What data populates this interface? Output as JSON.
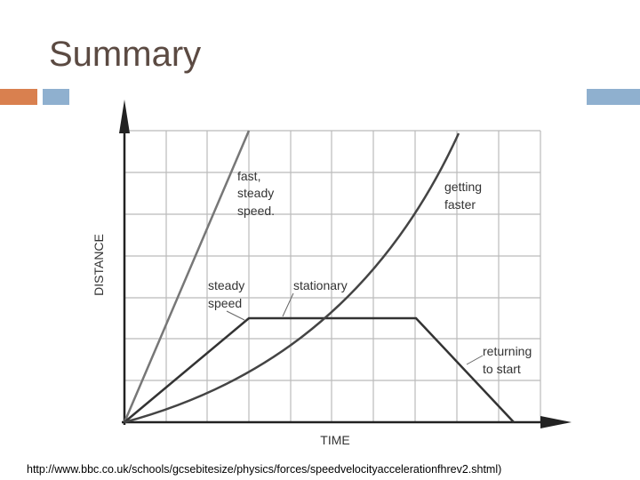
{
  "title": "Summary",
  "diagram": {
    "y_axis_label": "DISTANCE",
    "x_axis_label": "TIME",
    "annotations": [
      {
        "lines": [
          "fast,",
          "steady",
          "speed."
        ]
      },
      {
        "lines": [
          "getting",
          "faster"
        ]
      },
      {
        "lines": [
          "steady",
          "speed"
        ]
      },
      {
        "lines": [
          "stationary"
        ]
      },
      {
        "lines": [
          "returning",
          "to start"
        ]
      }
    ]
  },
  "source": "http://www.bbc.co.uk/schools/gcsebitesize/physics/forces/speedvelocityaccelerationfhrev2.shtml)"
}
